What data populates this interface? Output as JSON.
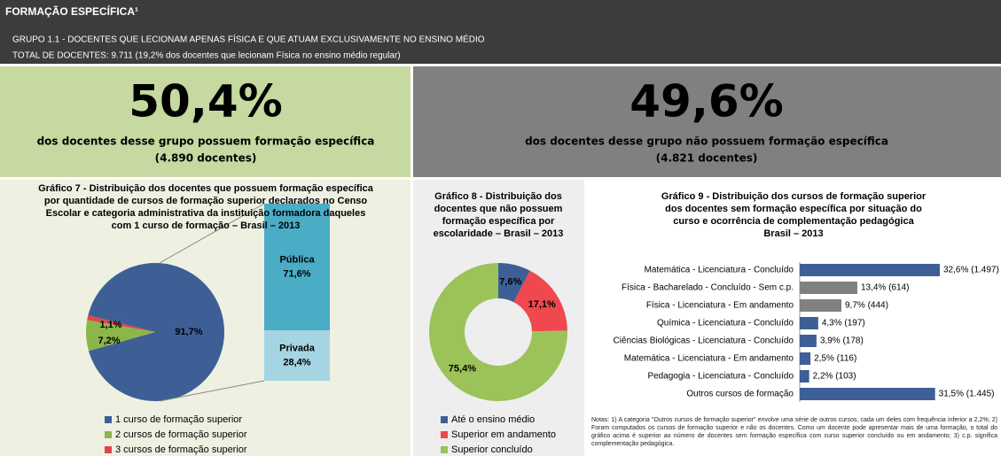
{
  "header": {
    "title": "FORMAÇÃO ESPECÍFICA¹",
    "line1": "GRUPO 1.1 - DOCENTES QUE LECIONAM APENAS FÍSICA E QUE ATUAM EXCLUSIVAMENTE NO ENSINO MÉDIO",
    "line2": "TOTAL DE DOCENTES: 9.711 (19,2% dos docentes que lecionam Física no ensino médio regular)"
  },
  "panels": [
    {
      "value_label": "50,4%",
      "text": "dos docentes desse grupo possuem formação específica",
      "sub": "(4.890 docentes)"
    },
    {
      "value_label": "49,6%",
      "text": "dos docentes desse grupo não possuem formação específica",
      "sub": "(4.821 docentes)"
    }
  ],
  "chart_data": [
    {
      "type": "pie",
      "title_lines": [
        "Gráfico 7 - Distribuição dos docentes que possuem formação específica",
        "por quantidade de cursos de formação superior declarados no Censo",
        "Escolar e categoria administrativa da instituição formadora daqueles",
        "com 1 curso de formação – Brasil – 2013"
      ],
      "categories": [
        "1 curso de formação superior",
        "2 cursos de formação superior",
        "3 cursos de formação superior"
      ],
      "values": [
        91.7,
        7.2,
        1.1
      ],
      "value_labels": [
        "91,7%",
        "7,2%",
        "1,1%"
      ],
      "colors": [
        "#3e5f96",
        "#8cb54a",
        "#e0454a"
      ],
      "breakdown": {
        "categories": [
          "Pública",
          "Privada"
        ],
        "values": [
          71.6,
          28.4
        ],
        "value_labels": [
          "71,6%",
          "28,4%"
        ],
        "colors": [
          "#4bacc6",
          "#a5d5e2"
        ]
      }
    },
    {
      "type": "donut",
      "title_lines": [
        "Gráfico 8 - Distribuição dos",
        "docentes que não possuem",
        "formação específica por",
        "escolaridade – Brasil – 2013"
      ],
      "categories": [
        "Até o ensino médio",
        "Superior em andamento",
        "Superior concluído"
      ],
      "values": [
        7.6,
        17.1,
        75.4
      ],
      "value_labels": [
        "7,6%",
        "17,1%",
        "75,4%"
      ],
      "colors": [
        "#3e5f96",
        "#f0484f",
        "#9cc25a"
      ]
    },
    {
      "type": "hbar",
      "title_lines": [
        "Gráfico 9 - Distribuição dos cursos de formação superior",
        "dos docentes sem formação específica por situação do",
        "curso e ocorrência de complementação pedagógica",
        "Brasil – 2013"
      ],
      "categories": [
        "Matemática - Licenciatura - Concluído",
        "Física - Bacharelado - Concluído - Sem c.p.",
        "Física - Licenciatura - Em andamento",
        "Química - Licenciatura - Concluído",
        "Ciências Biológicas - Licenciatura - Concluído",
        "Matemática - Licenciatura - Em andamento",
        "Pedagogia - Licenciatura - Concluído",
        "Outros cursos de formação"
      ],
      "values": [
        32.6,
        13.4,
        9.7,
        4.3,
        3.9,
        2.5,
        2.2,
        31.5
      ],
      "value_labels": [
        "32,6% (1.497)",
        "13,4% (614)",
        "9,7% (444)",
        "4,3% (197)",
        "3,9% (178)",
        "2,5% (116)",
        "2,2% (103)",
        "31,5% (1.445)"
      ],
      "colors": [
        "#3e5f96",
        "#808080",
        "#808080",
        "#3e5f96",
        "#3e5f96",
        "#3e5f96",
        "#3e5f96",
        "#3e5f96"
      ],
      "notes": "Notas: 1) A categoria \"Outros cursos de formação superior\" envolve uma série de outros cursos, cada um deles com frequência inferior a 2,2%; 2) Foram computados os cursos de formação superior e não os docentes. Como um docente pode apresentar mais de uma formação, o total do gráfico acima é superior ao número de docentes sem formação específica com curso superior concluído ou em andamento; 3) c.p. significa complementação pedagógica."
    }
  ]
}
